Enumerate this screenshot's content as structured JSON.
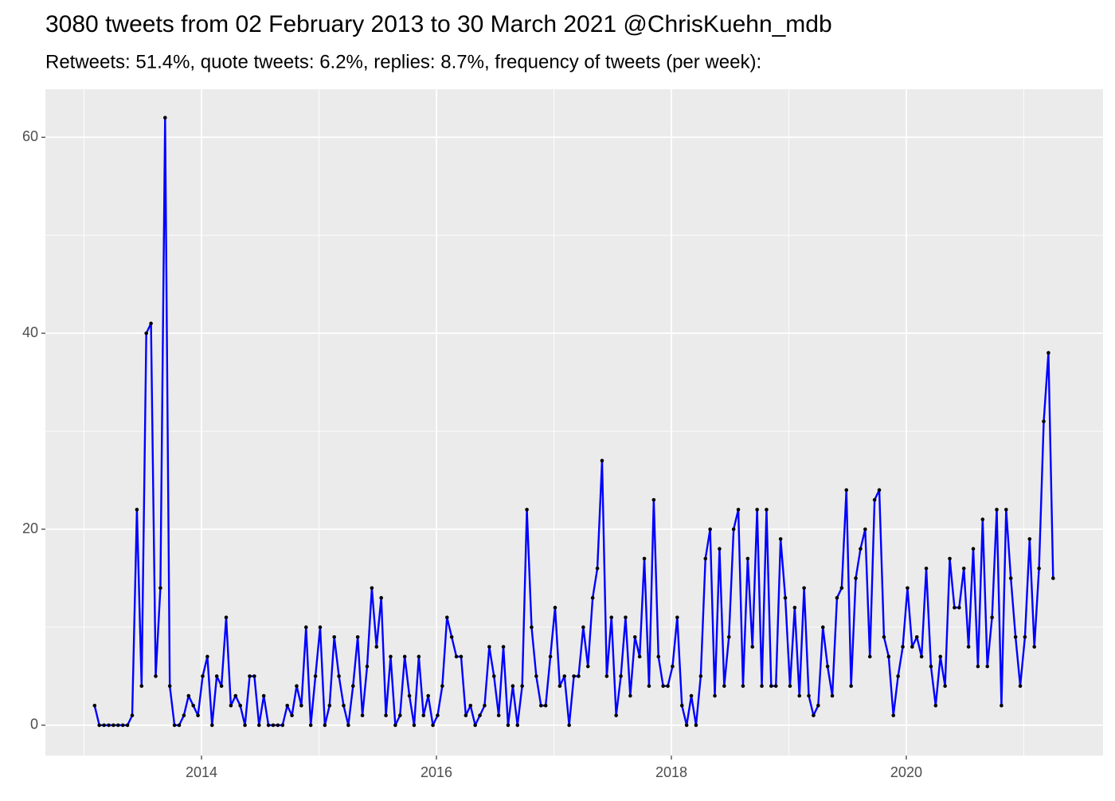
{
  "chart_data": {
    "type": "line",
    "title": "3080 tweets from 02 February 2013 to 30 March 2021 @ChrisKuehn_mdb",
    "subtitle": "Retweets: 51.4%, quote tweets: 6.2%, replies: 8.7%, frequency of tweets (per week):",
    "x": [
      2013.09,
      2013.13,
      2013.17,
      2013.21,
      2013.25,
      2013.29,
      2013.33,
      2013.37,
      2013.41,
      2013.45,
      2013.49,
      2013.53,
      2013.57,
      2013.61,
      2013.65,
      2013.69,
      2013.73,
      2013.77,
      2013.81,
      2013.85,
      2013.89,
      2013.93,
      2013.97,
      2014.01,
      2014.05,
      2014.09,
      2014.13,
      2014.17,
      2014.21,
      2014.25,
      2014.29,
      2014.33,
      2014.37,
      2014.41,
      2014.45,
      2014.49,
      2014.53,
      2014.57,
      2014.61,
      2014.65,
      2014.69,
      2014.73,
      2014.77,
      2014.81,
      2014.85,
      2014.89,
      2014.93,
      2014.97,
      2015.01,
      2015.05,
      2015.09,
      2015.13,
      2015.17,
      2015.21,
      2015.25,
      2015.29,
      2015.33,
      2015.37,
      2015.41,
      2015.45,
      2015.49,
      2015.53,
      2015.57,
      2015.61,
      2015.65,
      2015.69,
      2015.73,
      2015.77,
      2015.81,
      2015.85,
      2015.89,
      2015.93,
      2015.97,
      2016.01,
      2016.05,
      2016.09,
      2016.13,
      2016.17,
      2016.21,
      2016.25,
      2016.29,
      2016.33,
      2016.37,
      2016.41,
      2016.45,
      2016.49,
      2016.53,
      2016.57,
      2016.61,
      2016.65,
      2016.69,
      2016.73,
      2016.77,
      2016.81,
      2016.85,
      2016.89,
      2016.93,
      2016.97,
      2017.01,
      2017.05,
      2017.09,
      2017.13,
      2017.17,
      2017.21,
      2017.25,
      2017.29,
      2017.33,
      2017.37,
      2017.41,
      2017.45,
      2017.49,
      2017.53,
      2017.57,
      2017.61,
      2017.65,
      2017.69,
      2017.73,
      2017.77,
      2017.81,
      2017.85,
      2017.89,
      2017.93,
      2017.97,
      2018.01,
      2018.05,
      2018.09,
      2018.13,
      2018.17,
      2018.21,
      2018.25,
      2018.29,
      2018.33,
      2018.37,
      2018.41,
      2018.45,
      2018.49,
      2018.53,
      2018.57,
      2018.61,
      2018.65,
      2018.69,
      2018.73,
      2018.77,
      2018.81,
      2018.85,
      2018.89,
      2018.93,
      2018.97,
      2019.01,
      2019.05,
      2019.09,
      2019.13,
      2019.17,
      2019.21,
      2019.25,
      2019.29,
      2019.33,
      2019.37,
      2019.41,
      2019.45,
      2019.49,
      2019.53,
      2019.57,
      2019.61,
      2019.65,
      2019.69,
      2019.73,
      2019.77,
      2019.81,
      2019.85,
      2019.89,
      2019.93,
      2019.97,
      2020.01,
      2020.05,
      2020.09,
      2020.13,
      2020.17,
      2020.21,
      2020.25,
      2020.29,
      2020.33,
      2020.37,
      2020.41,
      2020.45,
      2020.49,
      2020.53,
      2020.57,
      2020.61,
      2020.65,
      2020.69,
      2020.73,
      2020.77,
      2020.81,
      2020.85,
      2020.89,
      2020.93,
      2020.97,
      2021.01,
      2021.05,
      2021.09,
      2021.13,
      2021.17,
      2021.21,
      2021.25
    ],
    "series": [
      {
        "color": "#0000ff",
        "point_color": "#000000",
        "values": [
          2,
          0,
          0,
          0,
          0,
          0,
          0,
          0,
          1,
          22,
          4,
          40,
          41,
          5,
          14,
          62,
          4,
          0,
          0,
          1,
          3,
          2,
          1,
          5,
          7,
          0,
          5,
          4,
          11,
          2,
          3,
          2,
          0,
          5,
          5,
          0,
          3,
          0,
          0,
          0,
          0,
          2,
          1,
          4,
          2,
          10,
          0,
          5,
          10,
          0,
          2,
          9,
          5,
          2,
          0,
          4,
          9,
          1,
          6,
          14,
          8,
          13,
          1,
          7,
          0,
          1,
          7,
          3,
          0,
          7,
          1,
          3,
          0,
          1,
          4,
          11,
          9,
          7,
          7,
          1,
          2,
          0,
          1,
          2,
          8,
          5,
          1,
          8,
          0,
          4,
          0,
          4,
          22,
          10,
          5,
          2,
          2,
          7,
          12,
          4,
          5,
          0,
          5,
          5,
          10,
          6,
          13,
          16,
          27,
          5,
          11,
          1,
          5,
          11,
          3,
          9,
          7,
          17,
          4,
          23,
          7,
          4,
          4,
          6,
          11,
          2,
          0,
          3,
          0,
          5,
          17,
          20,
          3,
          18,
          4,
          9,
          20,
          22,
          4,
          17,
          8,
          22,
          4,
          22,
          4,
          4,
          19,
          13,
          4,
          12,
          3,
          14,
          3,
          1,
          2,
          10,
          6,
          3,
          13,
          14,
          24,
          4,
          15,
          18,
          20,
          7,
          23,
          24,
          9,
          7,
          1,
          5,
          8,
          14,
          8,
          9,
          7,
          16,
          6,
          2,
          7,
          4,
          17,
          12,
          12,
          16,
          8,
          18,
          6,
          21,
          6,
          11,
          22,
          2,
          22,
          15,
          9,
          4,
          9,
          19,
          8,
          16,
          31,
          38,
          15
        ]
      }
    ],
    "xlim": [
      2012.671,
      2021.675
    ],
    "xticks": [
      2014,
      2016,
      2018,
      2020
    ],
    "ylim": [
      -3.1,
      64.9
    ],
    "yticks": [
      0,
      20,
      40,
      60
    ],
    "grid": true
  }
}
